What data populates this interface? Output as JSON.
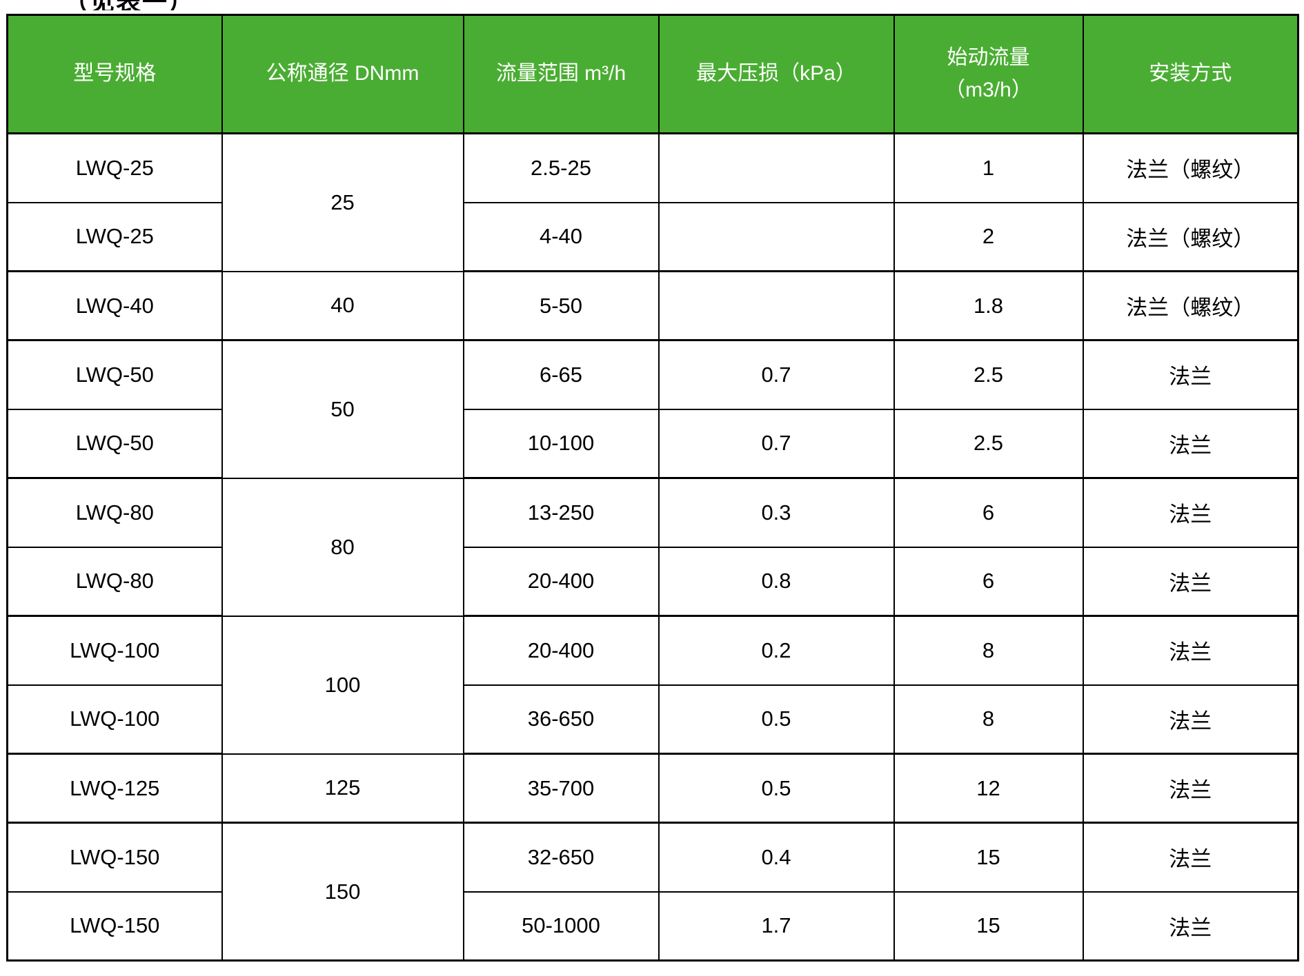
{
  "caption": "（见表一）",
  "colors": {
    "header_bg": "#4aad33",
    "header_text": "#ffffff",
    "border": "#000000",
    "cell_text": "#000000"
  },
  "table": {
    "headers": [
      {
        "label": "型号规格"
      },
      {
        "label": "公称通径 DNmm"
      },
      {
        "label": "流量范围 m³/h"
      },
      {
        "label": "最大压损（kPa）"
      },
      {
        "label": "始动流量",
        "label2": "（m3/h）"
      },
      {
        "label": "安装方式"
      }
    ],
    "rows": [
      {
        "model": "LWQ-25",
        "dn": "25",
        "dn_rowspan": 2,
        "flow": "2.5-25",
        "loss": "",
        "start": "1",
        "install": "法兰（螺纹）",
        "group_end": false
      },
      {
        "model": "LWQ-25",
        "flow": "4-40",
        "loss": "",
        "start": "2",
        "install": "法兰（螺纹）",
        "group_end": true
      },
      {
        "model": "LWQ-40",
        "dn": "40",
        "dn_rowspan": 1,
        "flow": "5-50",
        "loss": "",
        "start": "1.8",
        "install": "法兰（螺纹）",
        "group_end": true
      },
      {
        "model": "LWQ-50",
        "dn": "50",
        "dn_rowspan": 2,
        "flow": "6-65",
        "loss": "0.7",
        "start": "2.5",
        "install": "法兰",
        "group_end": false
      },
      {
        "model": "LWQ-50",
        "flow": "10-100",
        "loss": "0.7",
        "start": "2.5",
        "install": "法兰",
        "group_end": true
      },
      {
        "model": "LWQ-80",
        "dn": "80",
        "dn_rowspan": 2,
        "flow": "13-250",
        "loss": "0.3",
        "start": "6",
        "install": "法兰",
        "group_end": false
      },
      {
        "model": "LWQ-80",
        "flow": "20-400",
        "loss": "0.8",
        "start": "6",
        "install": "法兰",
        "group_end": true
      },
      {
        "model": "LWQ-100",
        "dn": "100",
        "dn_rowspan": 2,
        "flow": "20-400",
        "loss": "0.2",
        "start": "8",
        "install": "法兰",
        "group_end": false
      },
      {
        "model": "LWQ-100",
        "flow": "36-650",
        "loss": "0.5",
        "start": "8",
        "install": "法兰",
        "group_end": true
      },
      {
        "model": "LWQ-125",
        "dn": "125",
        "dn_rowspan": 1,
        "flow": "35-700",
        "loss": "0.5",
        "start": "12",
        "install": "法兰",
        "group_end": true
      },
      {
        "model": "LWQ-150",
        "dn": "150",
        "dn_rowspan": 2,
        "flow": "32-650",
        "loss": "0.4",
        "start": "15",
        "install": "法兰",
        "group_end": false
      },
      {
        "model": "LWQ-150",
        "flow": "50-1000",
        "loss": "1.7",
        "start": "15",
        "install": "法兰",
        "group_end": true
      }
    ]
  }
}
